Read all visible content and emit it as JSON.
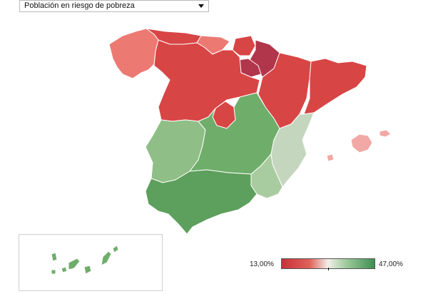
{
  "filter": {
    "selected": "Población en riesgo de pobreza"
  },
  "legend": {
    "min_label": "13,00%",
    "max_label": "47,00%"
  },
  "colors": {
    "dark_red": "#b2364b",
    "red": "#d84545",
    "light_red": "#ec7a72",
    "pink": "#f2a8a4",
    "neutral_green": "#c5d6bf",
    "light_green": "#a8cc9f",
    "mid_green": "#8fbe87",
    "green": "#6fad6b",
    "dark_green": "#5d9f5c"
  }
}
